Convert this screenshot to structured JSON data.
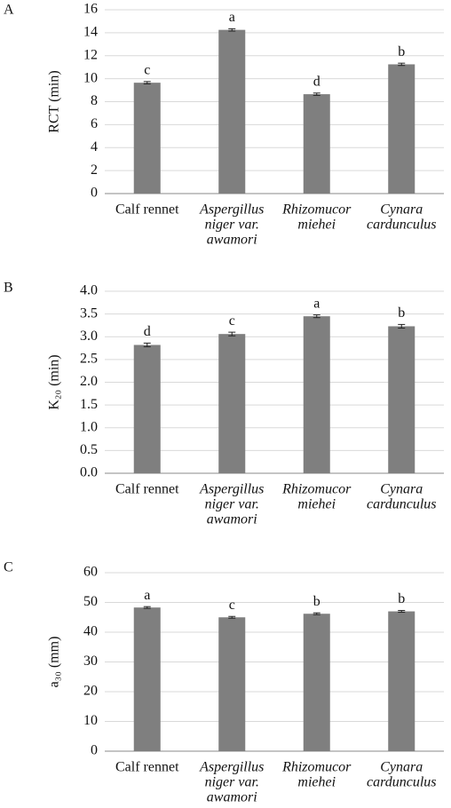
{
  "chart_data": [
    {
      "type": "bar",
      "panel": "A",
      "ylabel": "RCT (min)",
      "categories": [
        [
          "Calf rennet"
        ],
        [
          "Aspergillus",
          "niger var.",
          "awamori"
        ],
        [
          "Rhizomucor",
          "miehei"
        ],
        [
          "Cynara",
          "cardunculus"
        ]
      ],
      "values": [
        9.65,
        14.25,
        8.65,
        11.25
      ],
      "errors": [
        0.1,
        0.1,
        0.1,
        0.1
      ],
      "letters": [
        "c",
        "a",
        "d",
        "b"
      ],
      "color": "#7f7f7f",
      "ylim": [
        0,
        16
      ],
      "yticks": [
        0,
        2,
        4,
        6,
        8,
        10,
        12,
        14,
        16
      ],
      "grid": true
    },
    {
      "type": "bar",
      "panel": "B",
      "ylabel": "K₂₀ (min)",
      "categories": [
        [
          "Calf rennet"
        ],
        [
          "Aspergillus",
          "niger var.",
          "awamori"
        ],
        [
          "Rhizomucor",
          "miehei"
        ],
        [
          "Cynara",
          "cardunculus"
        ]
      ],
      "values": [
        2.82,
        3.06,
        3.45,
        3.23
      ],
      "errors": [
        0.04,
        0.04,
        0.03,
        0.04
      ],
      "letters": [
        "d",
        "c",
        "a",
        "b"
      ],
      "color": "#7f7f7f",
      "ylim": [
        0,
        4
      ],
      "yticks": [
        {
          "value": 0,
          "label": "0.0"
        },
        {
          "value": 0.5,
          "label": "0.5"
        },
        {
          "value": 1,
          "label": "1.0"
        },
        {
          "value": 1.5,
          "label": "1.5"
        },
        {
          "value": 2,
          "label": "2.0"
        },
        {
          "value": 2.5,
          "label": "2.5"
        },
        {
          "value": 3,
          "label": "3.0"
        },
        {
          "value": 3.5,
          "label": "3.5"
        },
        {
          "value": 4,
          "label": "4.0"
        }
      ],
      "grid": true
    },
    {
      "type": "bar",
      "panel": "C",
      "ylabel": "a₃₀ (mm)",
      "categories": [
        [
          "Calf rennet"
        ],
        [
          "Aspergillus",
          "niger var.",
          "awamori"
        ],
        [
          "Rhizomucor",
          "miehei"
        ],
        [
          "Cynara",
          "cardunculus"
        ]
      ],
      "values": [
        48.3,
        45.0,
        46.2,
        47.0
      ],
      "errors": [
        0.3,
        0.3,
        0.3,
        0.3
      ],
      "letters": [
        "a",
        "c",
        "b",
        "b"
      ],
      "color": "#7f7f7f",
      "ylim": [
        0,
        60
      ],
      "yticks": [
        0,
        10,
        20,
        30,
        40,
        50,
        60
      ],
      "grid": true
    }
  ]
}
